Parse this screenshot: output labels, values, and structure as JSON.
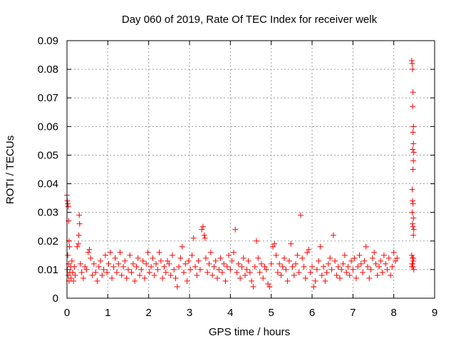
{
  "chart_data": {
    "type": "scatter",
    "title": "Day 060 of 2019, Rate Of TEC Index for receiver welk",
    "xlabel": "GPS time / hours",
    "ylabel": "ROTI / TECUs",
    "xlim": [
      0,
      9
    ],
    "ylim": [
      0,
      0.09
    ],
    "grid": true,
    "marker": "+",
    "color": "#ff0000",
    "xticks": [
      0,
      1,
      2,
      3,
      4,
      5,
      6,
      7,
      8,
      9
    ],
    "xtick_labels": [
      "0",
      "1",
      "2",
      "3",
      "4",
      "5",
      "6",
      "7",
      "8",
      "9"
    ],
    "yticks": [
      0,
      0.01,
      0.02,
      0.03,
      0.04,
      0.05,
      0.06,
      0.07,
      0.08,
      0.09
    ],
    "ytick_labels": [
      "0",
      "0.01",
      "0.02",
      "0.03",
      "0.04",
      "0.05",
      "0.06",
      "0.07",
      "0.08",
      "0.09"
    ],
    "series": [
      {
        "name": "ROTI",
        "points": [
          [
            0.0,
            0.036
          ],
          [
            0.01,
            0.034
          ],
          [
            0.02,
            0.033
          ],
          [
            0.03,
            0.032
          ],
          [
            0.04,
            0.027
          ],
          [
            0.05,
            0.02
          ],
          [
            0.06,
            0.018
          ],
          [
            0.02,
            0.015
          ],
          [
            0.04,
            0.012
          ],
          [
            0.01,
            0.01
          ],
          [
            0.03,
            0.008
          ],
          [
            0.05,
            0.006
          ],
          [
            0.07,
            0.009
          ],
          [
            0.09,
            0.011
          ],
          [
            0.1,
            0.007
          ],
          [
            0.12,
            0.013
          ],
          [
            0.14,
            0.009
          ],
          [
            0.16,
            0.006
          ],
          [
            0.18,
            0.011
          ],
          [
            0.2,
            0.008
          ],
          [
            0.25,
            0.018
          ],
          [
            0.28,
            0.019
          ],
          [
            0.3,
            0.029
          ],
          [
            0.31,
            0.026
          ],
          [
            0.29,
            0.022
          ],
          [
            0.33,
            0.012
          ],
          [
            0.36,
            0.009
          ],
          [
            0.4,
            0.007
          ],
          [
            0.44,
            0.011
          ],
          [
            0.48,
            0.01
          ],
          [
            0.52,
            0.016
          ],
          [
            0.55,
            0.017
          ],
          [
            0.58,
            0.014
          ],
          [
            0.62,
            0.008
          ],
          [
            0.66,
            0.012
          ],
          [
            0.7,
            0.009
          ],
          [
            0.74,
            0.006
          ],
          [
            0.78,
            0.011
          ],
          [
            0.82,
            0.013
          ],
          [
            0.86,
            0.008
          ],
          [
            0.9,
            0.01
          ],
          [
            0.94,
            0.015
          ],
          [
            0.98,
            0.009
          ],
          [
            1.02,
            0.012
          ],
          [
            1.06,
            0.016
          ],
          [
            1.1,
            0.007
          ],
          [
            1.14,
            0.011
          ],
          [
            1.18,
            0.014
          ],
          [
            1.22,
            0.009
          ],
          [
            1.26,
            0.012
          ],
          [
            1.3,
            0.016
          ],
          [
            1.34,
            0.008
          ],
          [
            1.38,
            0.011
          ],
          [
            1.42,
            0.013
          ],
          [
            1.46,
            0.007
          ],
          [
            1.5,
            0.01
          ],
          [
            1.54,
            0.015
          ],
          [
            1.58,
            0.009
          ],
          [
            1.62,
            0.012
          ],
          [
            1.66,
            0.006
          ],
          [
            1.7,
            0.011
          ],
          [
            1.74,
            0.014
          ],
          [
            1.78,
            0.008
          ],
          [
            1.82,
            0.01
          ],
          [
            1.86,
            0.013
          ],
          [
            1.9,
            0.007
          ],
          [
            1.94,
            0.012
          ],
          [
            1.98,
            0.016
          ],
          [
            2.02,
            0.009
          ],
          [
            2.06,
            0.011
          ],
          [
            2.1,
            0.014
          ],
          [
            2.14,
            0.008
          ],
          [
            2.18,
            0.012
          ],
          [
            2.22,
            0.01
          ],
          [
            2.26,
            0.016
          ],
          [
            2.3,
            0.013
          ],
          [
            2.34,
            0.007
          ],
          [
            2.38,
            0.011
          ],
          [
            2.42,
            0.009
          ],
          [
            2.46,
            0.013
          ],
          [
            2.5,
            0.012
          ],
          [
            2.54,
            0.008
          ],
          [
            2.58,
            0.015
          ],
          [
            2.62,
            0.01
          ],
          [
            2.66,
            0.007
          ],
          [
            2.7,
            0.004
          ],
          [
            2.74,
            0.011
          ],
          [
            2.78,
            0.014
          ],
          [
            2.82,
            0.018
          ],
          [
            2.86,
            0.009
          ],
          [
            2.9,
            0.012
          ],
          [
            2.94,
            0.006
          ],
          [
            2.98,
            0.013
          ],
          [
            3.02,
            0.01
          ],
          [
            3.06,
            0.015
          ],
          [
            3.1,
            0.021
          ],
          [
            3.14,
            0.011
          ],
          [
            3.18,
            0.008
          ],
          [
            3.22,
            0.013
          ],
          [
            3.26,
            0.01
          ],
          [
            3.3,
            0.024
          ],
          [
            3.33,
            0.025
          ],
          [
            3.36,
            0.022
          ],
          [
            3.38,
            0.021
          ],
          [
            3.4,
            0.014
          ],
          [
            3.44,
            0.009
          ],
          [
            3.48,
            0.012
          ],
          [
            3.52,
            0.016
          ],
          [
            3.56,
            0.008
          ],
          [
            3.6,
            0.011
          ],
          [
            3.64,
            0.013
          ],
          [
            3.68,
            0.007
          ],
          [
            3.72,
            0.01
          ],
          [
            3.76,
            0.014
          ],
          [
            3.8,
            0.009
          ],
          [
            3.84,
            0.012
          ],
          [
            3.88,
            0.006
          ],
          [
            3.92,
            0.011
          ],
          [
            3.96,
            0.015
          ],
          [
            4.0,
            0.01
          ],
          [
            4.04,
            0.013
          ],
          [
            4.08,
            0.016
          ],
          [
            4.12,
            0.024
          ],
          [
            4.16,
            0.009
          ],
          [
            4.2,
            0.012
          ],
          [
            4.24,
            0.007
          ],
          [
            4.28,
            0.011
          ],
          [
            4.32,
            0.014
          ],
          [
            4.36,
            0.008
          ],
          [
            4.4,
            0.01
          ],
          [
            4.44,
            0.013
          ],
          [
            4.48,
            0.009
          ],
          [
            4.52,
            0.006
          ],
          [
            4.56,
            0.004
          ],
          [
            4.6,
            0.011
          ],
          [
            4.64,
            0.02
          ],
          [
            4.68,
            0.014
          ],
          [
            4.72,
            0.009
          ],
          [
            4.76,
            0.012
          ],
          [
            4.8,
            0.007
          ],
          [
            4.84,
            0.011
          ],
          [
            4.88,
            0.01
          ],
          [
            4.92,
            0.005
          ],
          [
            4.96,
            0.004
          ],
          [
            5.0,
            0.012
          ],
          [
            5.04,
            0.018
          ],
          [
            5.08,
            0.019
          ],
          [
            5.12,
            0.015
          ],
          [
            5.16,
            0.009
          ],
          [
            5.2,
            0.012
          ],
          [
            5.24,
            0.008
          ],
          [
            5.28,
            0.011
          ],
          [
            5.32,
            0.014
          ],
          [
            5.36,
            0.01
          ],
          [
            5.4,
            0.006
          ],
          [
            5.44,
            0.013
          ],
          [
            5.48,
            0.019
          ],
          [
            5.52,
            0.011
          ],
          [
            5.56,
            0.008
          ],
          [
            5.6,
            0.012
          ],
          [
            5.64,
            0.015
          ],
          [
            5.68,
            0.009
          ],
          [
            5.72,
            0.029
          ],
          [
            5.76,
            0.014
          ],
          [
            5.8,
            0.011
          ],
          [
            5.84,
            0.007
          ],
          [
            5.88,
            0.016
          ],
          [
            5.92,
            0.017
          ],
          [
            5.96,
            0.009
          ],
          [
            6.0,
            0.011
          ],
          [
            6.04,
            0.004
          ],
          [
            6.08,
            0.006
          ],
          [
            6.12,
            0.01
          ],
          [
            6.16,
            0.013
          ],
          [
            6.2,
            0.018
          ],
          [
            6.24,
            0.008
          ],
          [
            6.28,
            0.011
          ],
          [
            6.32,
            0.006
          ],
          [
            6.36,
            0.009
          ],
          [
            6.4,
            0.012
          ],
          [
            6.44,
            0.014
          ],
          [
            6.48,
            0.01
          ],
          [
            6.52,
            0.022
          ],
          [
            6.56,
            0.013
          ],
          [
            6.6,
            0.008
          ],
          [
            6.64,
            0.011
          ],
          [
            6.68,
            0.007
          ],
          [
            6.72,
            0.01
          ],
          [
            6.76,
            0.012
          ],
          [
            6.8,
            0.015
          ],
          [
            6.84,
            0.009
          ],
          [
            6.88,
            0.011
          ],
          [
            6.92,
            0.008
          ],
          [
            6.96,
            0.013
          ],
          [
            7.0,
            0.01
          ],
          [
            7.04,
            0.014
          ],
          [
            7.08,
            0.007
          ],
          [
            7.12,
            0.011
          ],
          [
            7.16,
            0.015
          ],
          [
            7.2,
            0.012
          ],
          [
            7.24,
            0.009
          ],
          [
            7.28,
            0.013
          ],
          [
            7.32,
            0.018
          ],
          [
            7.36,
            0.011
          ],
          [
            7.4,
            0.007
          ],
          [
            7.44,
            0.01
          ],
          [
            7.48,
            0.014
          ],
          [
            7.52,
            0.016
          ],
          [
            7.56,
            0.012
          ],
          [
            7.6,
            0.008
          ],
          [
            7.64,
            0.011
          ],
          [
            7.68,
            0.013
          ],
          [
            7.72,
            0.009
          ],
          [
            7.76,
            0.015
          ],
          [
            7.8,
            0.012
          ],
          [
            7.84,
            0.01
          ],
          [
            7.88,
            0.014
          ],
          [
            7.92,
            0.008
          ],
          [
            7.96,
            0.011
          ],
          [
            8.0,
            0.016
          ],
          [
            8.04,
            0.013
          ],
          [
            8.08,
            0.014
          ],
          [
            8.44,
            0.083
          ],
          [
            8.45,
            0.082
          ],
          [
            8.46,
            0.08
          ],
          [
            8.47,
            0.072
          ],
          [
            8.46,
            0.067
          ],
          [
            8.48,
            0.06
          ],
          [
            8.47,
            0.058
          ],
          [
            8.48,
            0.054
          ],
          [
            8.46,
            0.052
          ],
          [
            8.49,
            0.051
          ],
          [
            8.48,
            0.048
          ],
          [
            8.47,
            0.045
          ],
          [
            8.45,
            0.038
          ],
          [
            8.46,
            0.034
          ],
          [
            8.47,
            0.033
          ],
          [
            8.45,
            0.03
          ],
          [
            8.48,
            0.028
          ],
          [
            8.46,
            0.026
          ],
          [
            8.47,
            0.025
          ],
          [
            8.49,
            0.024
          ],
          [
            8.48,
            0.022
          ],
          [
            8.44,
            0.015
          ],
          [
            8.46,
            0.014
          ],
          [
            8.48,
            0.013
          ],
          [
            8.45,
            0.012
          ],
          [
            8.47,
            0.011
          ],
          [
            8.49,
            0.01
          ],
          [
            8.46,
            0.012
          ],
          [
            8.48,
            0.014
          ],
          [
            8.44,
            0.011
          ]
        ]
      }
    ]
  }
}
